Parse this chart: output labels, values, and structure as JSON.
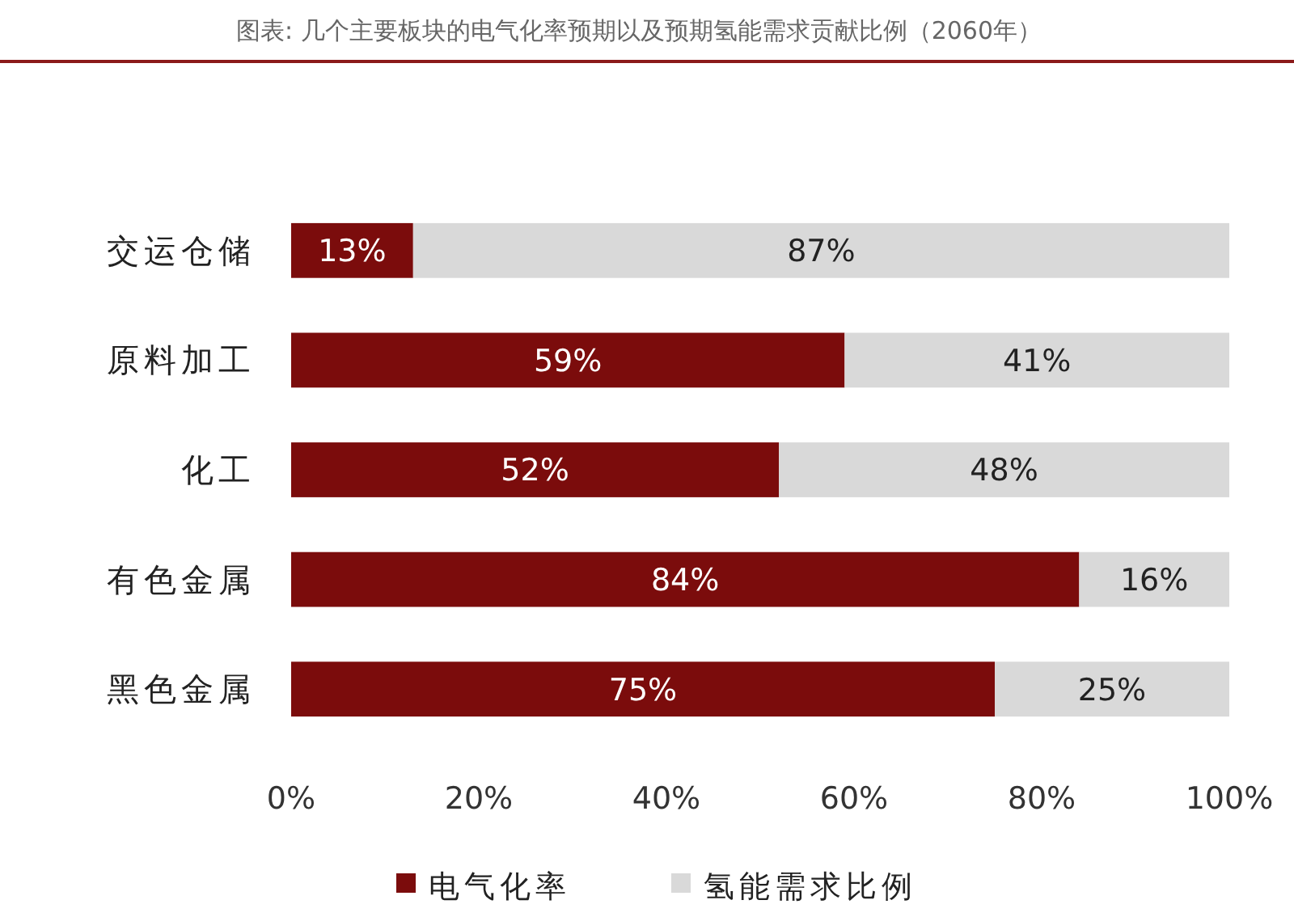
{
  "chart_data": {
    "type": "bar",
    "orientation": "horizontal",
    "stacked": true,
    "title": "图表: 几个主要板块的电气化率预期以及预期氢能需求贡献比例（2060年）",
    "categories": [
      "交运仓储",
      "原料加工",
      "化工",
      "有色金属",
      "黑色金属"
    ],
    "series": [
      {
        "name": "电气化率",
        "color": "#7b0c0c",
        "values": [
          13,
          59,
          52,
          84,
          75
        ],
        "value_labels": [
          "13%",
          "59%",
          "52%",
          "84%",
          "75%"
        ]
      },
      {
        "name": "氢能需求比例",
        "color": "#d9d9d9",
        "values": [
          87,
          41,
          48,
          16,
          25
        ],
        "value_labels": [
          "87%",
          "41%",
          "48%",
          "16%",
          "25%"
        ]
      }
    ],
    "xlim": [
      0,
      100
    ],
    "xticks": [
      {
        "value": 0,
        "label": "0%"
      },
      {
        "value": 20,
        "label": "20%"
      },
      {
        "value": 40,
        "label": "40%"
      },
      {
        "value": 60,
        "label": "60%"
      },
      {
        "value": 80,
        "label": "80%"
      },
      {
        "value": 100,
        "label": "100%"
      }
    ],
    "legend": "bottom"
  }
}
